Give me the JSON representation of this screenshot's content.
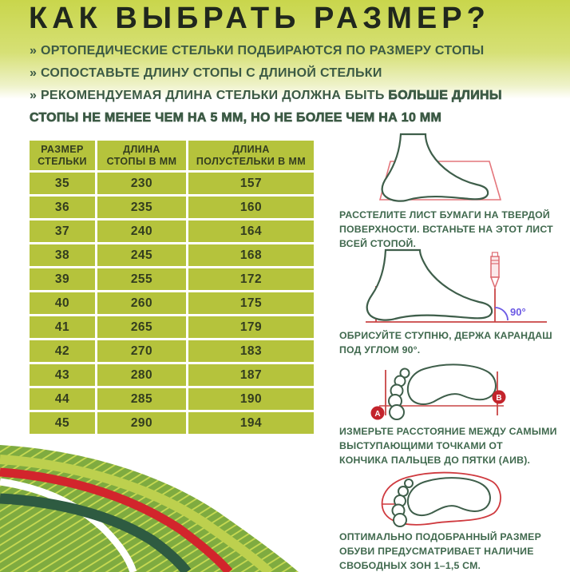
{
  "title": "КАК ВЫБРАТЬ РАЗМЕР?",
  "intro": {
    "marker": "»",
    "bullets": [
      {
        "text": "ОРТОПЕДИЧЕСКИЕ СТЕЛЬКИ ПОДБИРАЮТСЯ ПО РАЗМЕРУ СТОПЫ",
        "heavy": ""
      },
      {
        "text": "СОПОСТАВЬТЕ ДЛИНУ СТОПЫ С ДЛИНОЙ СТЕЛЬКИ",
        "heavy": ""
      },
      {
        "text": "РЕКОМЕНДУЕМАЯ ДЛИНА СТЕЛЬКИ ДОЛЖНА БЫТЬ ",
        "heavy": "БОЛЬШЕ ДЛИНЫ СТОПЫ НЕ МЕНЕЕ ЧЕМ НА 5 ММ, НО НЕ БОЛЕЕ ЧЕМ НА 10 ММ"
      }
    ]
  },
  "table": {
    "headers": [
      "РАЗМЕР\nСТЕЛЬКИ",
      "ДЛИНА\nСТОПЫ В ММ",
      "ДЛИНА\nПОЛУСТЕЛЬКИ В ММ"
    ],
    "rows": [
      [
        "35",
        "230",
        "157"
      ],
      [
        "36",
        "235",
        "160"
      ],
      [
        "37",
        "240",
        "164"
      ],
      [
        "38",
        "245",
        "168"
      ],
      [
        "39",
        "255",
        "172"
      ],
      [
        "40",
        "260",
        "175"
      ],
      [
        "41",
        "265",
        "179"
      ],
      [
        "42",
        "270",
        "183"
      ],
      [
        "43",
        "280",
        "187"
      ],
      [
        "44",
        "285",
        "190"
      ],
      [
        "45",
        "290",
        "194"
      ]
    ]
  },
  "steps": [
    {
      "illustration": "foot-standing-on-paper-sheet",
      "caption": "РАССТЕЛИТЕ ЛИСТ БУМАГИ НА ТВЕРДОЙ\nПОВЕРХНОСТИ. ВСТАНЬТЕ НА ЭТОТ ЛИСТ\nВСЕЙ СТОПОЙ."
    },
    {
      "illustration": "foot-outlined-with-pencil",
      "angle_label": "90°",
      "caption": "ОБРИСУЙТЕ СТУПНЮ, ДЕРЖА КАРАНДАШ\nПОД УГЛОМ 90°."
    },
    {
      "illustration": "footprint-measured-between-points",
      "point_a": "А",
      "point_b": "В",
      "caption": "ИЗМЕРЬТЕ РАССТОЯНИЕ МЕЖДУ САМЫМИ\nВЫСТУПАЮЩИМИ ТОЧКАМИ ОТ\nКОНЧИКА ПАЛЬЦЕВ ДО ПЯТКИ (АИВ)."
    },
    {
      "illustration": "footprint-inside-insole-outline",
      "caption": "ОПТИМАЛЬНО ПОДОБРАННЫЙ РАЗМЕР\nОБУВИ ПРЕДУСМАТРИВАЕТ НАЛИЧИЕ\nСВОБОДНЫХ ЗОН 1–1,5 СМ."
    }
  ],
  "colors": {
    "top_gradient_green": "#c9d64c",
    "table_cell_green": "#b5c33c",
    "table_text": "#333d1f",
    "title_text": "#20271d",
    "bullet_text_green": "#3c5a45",
    "caption_green": "#40694e",
    "foot_outline_green": "#3e5e4a",
    "measure_red": "#c94545",
    "accent_red": "#d2252c",
    "angle_purple": "#6c5ae4",
    "wave_dark_green": "#2e5b41",
    "wave_light_green": "#bdd04e",
    "wave_base_green": "#7fab40"
  }
}
